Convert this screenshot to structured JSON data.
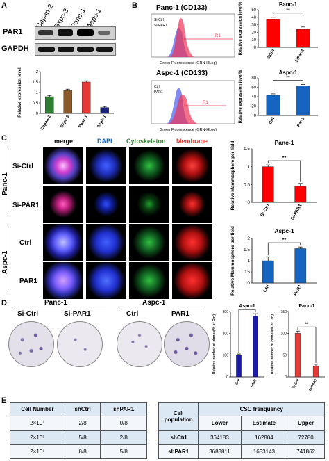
{
  "panels": {
    "A": "A",
    "B": "B",
    "C": "C",
    "D": "D",
    "E": "E"
  },
  "panelA": {
    "lanes": [
      "Capan-2",
      "Bxpc-3",
      "Panc-1",
      "Aspc-1"
    ],
    "blot_rows": [
      "PAR1",
      "GAPDH"
    ],
    "chart_data": {
      "type": "bar",
      "categories": [
        "Capan-2",
        "Bxpc-3",
        "Panc-1",
        "Aspc-1"
      ],
      "values": [
        0.8,
        1.1,
        1.5,
        0.28
      ],
      "errors": [
        0.06,
        0.06,
        0.06,
        0.05
      ],
      "colors": [
        "#2e7d32",
        "#8b5a2b",
        "#e53935",
        "#1a237e"
      ],
      "ylabel": "Relative expression level",
      "yticks": [
        0.0,
        0.5,
        1.0,
        1.5,
        2.0
      ],
      "ylim": [
        0,
        2.0
      ]
    }
  },
  "panelB": {
    "flow": [
      {
        "title": "Panc-1 (CD133)",
        "legend": [
          "Si-Ctrl",
          "Si-PAR1"
        ],
        "gate": "R1",
        "xlabel": "Green Fluorescence (GRN-HLog)"
      },
      {
        "title": "Aspc-1 (CD133)",
        "legend": [
          "Ctrl",
          "PAR1"
        ],
        "gate": "R1",
        "xlabel": "Green Fluorescence (GRN-HLog)"
      }
    ],
    "charts": [
      {
        "type": "bar",
        "title": "Panc-1",
        "categories": [
          "SiCtrl",
          "SiPar-1"
        ],
        "values": [
          37,
          24
        ],
        "errors": [
          3,
          3
        ],
        "colors": [
          "#ff0000",
          "#ff0000"
        ],
        "ylabel": "Relative expression level%",
        "yticks": [
          0,
          10,
          20,
          30,
          40,
          50
        ],
        "ylim": [
          0,
          50
        ],
        "sig": "**"
      },
      {
        "type": "bar",
        "title": "Aspc-1",
        "categories": [
          "Ctrl",
          "Par-1"
        ],
        "values": [
          43,
          63
        ],
        "errors": [
          3,
          3
        ],
        "colors": [
          "#1565c0",
          "#1565c0"
        ],
        "ylabel": "Relative expression level%",
        "yticks": [
          0,
          20,
          40,
          60,
          80
        ],
        "ylim": [
          0,
          80
        ],
        "sig": "**"
      }
    ]
  },
  "panelC": {
    "columns": [
      "merge",
      "DAPI",
      "Cytoskeleton",
      "Membrane"
    ],
    "column_colors": [
      "#000000",
      "#1565c0",
      "#2e7d32",
      "#e53935"
    ],
    "groups": [
      "Panc-1",
      "Aspc-1"
    ],
    "rows": [
      "Si-Ctrl",
      "Si-PAR1",
      "Ctrl",
      "PAR1"
    ],
    "charts": [
      {
        "type": "bar",
        "title": "Panc-1",
        "categories": [
          "Si-Ctrl",
          "Si-PAR1"
        ],
        "values": [
          1.0,
          0.45
        ],
        "errors": [
          0.05,
          0.08
        ],
        "colors": [
          "#ff0000",
          "#ff0000"
        ],
        "ylabel": "Relative Mammosphere per field",
        "yticks": [
          0.0,
          0.5,
          1.0,
          1.5
        ],
        "ylim": [
          0,
          1.5
        ],
        "sig": "**"
      },
      {
        "type": "bar",
        "title": "Aspc-1",
        "categories": [
          "Ctrl",
          "PAR1"
        ],
        "values": [
          1.0,
          1.55
        ],
        "errors": [
          0.18,
          0.07
        ],
        "colors": [
          "#1565c0",
          "#1565c0"
        ],
        "ylabel": "Relative Mammosphere per field",
        "yticks": [
          0.0,
          0.5,
          1.0,
          1.5,
          2.0
        ],
        "ylim": [
          0,
          2.0
        ],
        "sig": "**"
      }
    ]
  },
  "panelD": {
    "groups": [
      "Panc-1",
      "Aspc-1"
    ],
    "dish_labels": [
      "Si-Ctrl",
      "Si-PAR1",
      "Ctrl",
      "PAR1"
    ],
    "charts": [
      {
        "type": "bar",
        "title": "Aspc-1",
        "categories": [
          "Ctrl",
          "PAR1"
        ],
        "values": [
          100,
          280
        ],
        "errors": [
          5,
          10
        ],
        "colors": [
          "#1a1aaa",
          "#1a1aaa"
        ],
        "ylabel": "Relative number of clones(% of Ctrl)",
        "yticks": [
          0,
          100,
          200,
          300
        ],
        "ylim": [
          0,
          300
        ],
        "sig": "**"
      },
      {
        "type": "bar",
        "title": "Panc-1",
        "categories": [
          "Si-Ctrl",
          "Si-PAR1"
        ],
        "values": [
          100,
          25
        ],
        "errors": [
          5,
          4
        ],
        "colors": [
          "#e53935",
          "#e53935"
        ],
        "ylabel": "Relative number of clones(% of Ctrl)",
        "yticks": [
          0,
          50,
          100,
          150
        ],
        "ylim": [
          0,
          150
        ],
        "sig": "**"
      }
    ]
  },
  "panelE": {
    "table1": {
      "header": [
        "Cell Number",
        "shCtrl",
        "shPAR1"
      ],
      "rows": [
        [
          "2×10⁴",
          "2/8",
          "0/8"
        ],
        [
          "2×10⁵",
          "5/8",
          "2/8"
        ],
        [
          "2×10⁶",
          "8/8",
          "5/8"
        ]
      ]
    },
    "table2": {
      "header_left": "Cell population",
      "header_group": "CSC frenquency",
      "subheaders": [
        "Lower",
        "Estimate",
        "Upper"
      ],
      "rows": [
        [
          "shCtrl",
          "364183",
          "162804",
          "72780"
        ],
        [
          "shPAR1",
          "3683811",
          "1653143",
          "741862"
        ]
      ]
    }
  }
}
